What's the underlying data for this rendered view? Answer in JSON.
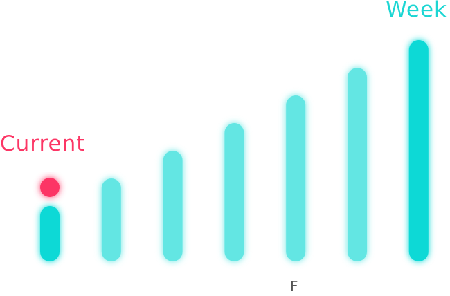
{
  "chart_data": {
    "type": "bar",
    "categories": [
      "",
      "",
      "",
      "",
      "F",
      "",
      ""
    ],
    "values": [
      2,
      3,
      4,
      5,
      6,
      7,
      8
    ],
    "ylim": [
      0,
      8
    ],
    "grid": false,
    "highlight_index": 0,
    "labels": {
      "start": "Current",
      "end": "Week"
    },
    "x_tick_label": "F"
  },
  "colors": {
    "bar": "#64e6e3",
    "bar_highlight": "#0fd9d6",
    "current": "#fc3665",
    "week": "#1cd6d3"
  }
}
